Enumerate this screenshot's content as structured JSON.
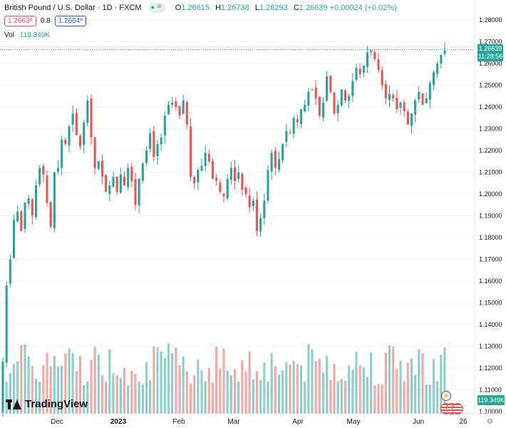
{
  "header": {
    "symbol": "British Pound / U.S. Dollar · 1D · FXCM",
    "o_label": "O",
    "o_value": "1.26615",
    "h_label": "H",
    "h_value": "1.26738",
    "l_label": "L",
    "l_value": "1.26293",
    "c_label": "C",
    "c_value": "1.26639",
    "change": "+0.00024 (+0.02%)"
  },
  "quote": {
    "sell": "1.2663⁸",
    "spread": "0.8",
    "buy": "1.2664⁶"
  },
  "volume": {
    "label": "Vol",
    "value": "119.349K",
    "tag": "119.349K"
  },
  "price_tag": {
    "price": "1.26639",
    "countdown": "11:28:56"
  },
  "brand": {
    "name": "TradingView"
  },
  "icons": {
    "eye": "eye-icon",
    "bolt": "bolt-icon",
    "flag": "us-flag-icon",
    "settings": "gear-icon",
    "logo": "tradingview-logo"
  },
  "colors": {
    "up": "#26a69a",
    "down": "#ef5350",
    "vol_up": "#8ccfc6",
    "vol_down": "#f4a8a6",
    "last_line": "#26a69a"
  },
  "chart_data": {
    "type": "candlestick",
    "y_ticks": [
      "1.28000",
      "1.27000",
      "1.26000",
      "1.25000",
      "1.24000",
      "1.23000",
      "1.22000",
      "1.21000",
      "1.20000",
      "1.19000",
      "1.18000",
      "1.17000",
      "1.16000",
      "1.15000",
      "1.14000",
      "1.13000",
      "1.12000",
      "1.11000",
      "1.10000"
    ],
    "ylim": [
      1.1,
      1.28
    ],
    "x_ticks": [
      "Dec",
      "2023",
      "Feb",
      "Mar",
      "Apr",
      "May",
      "Jun",
      "26"
    ],
    "last_price": 1.26639,
    "closes": [
      1.123,
      1.158,
      1.17,
      1.188,
      1.192,
      1.183,
      1.196,
      1.198,
      1.19,
      1.204,
      1.212,
      1.209,
      1.196,
      1.185,
      1.21,
      1.212,
      1.225,
      1.223,
      1.231,
      1.237,
      1.227,
      1.222,
      1.233,
      1.243,
      1.226,
      1.212,
      1.215,
      1.208,
      1.201,
      1.204,
      1.208,
      1.201,
      1.209,
      1.204,
      1.212,
      1.206,
      1.195,
      1.207,
      1.214,
      1.22,
      1.228,
      1.217,
      1.223,
      1.226,
      1.236,
      1.241,
      1.242,
      1.24,
      1.236,
      1.243,
      1.232,
      1.208,
      1.205,
      1.211,
      1.213,
      1.219,
      1.215,
      1.207,
      1.206,
      1.201,
      1.199,
      1.207,
      1.212,
      1.206,
      1.21,
      1.202,
      1.2,
      1.194,
      1.197,
      1.183,
      1.189,
      1.197,
      1.211,
      1.219,
      1.212,
      1.216,
      1.223,
      1.229,
      1.228,
      1.235,
      1.233,
      1.239,
      1.241,
      1.247,
      1.248,
      1.244,
      1.236,
      1.242,
      1.254,
      1.247,
      1.237,
      1.241,
      1.248,
      1.243,
      1.245,
      1.252,
      1.258,
      1.255,
      1.259,
      1.265,
      1.266,
      1.262,
      1.257,
      1.25,
      1.244,
      1.246,
      1.244,
      1.239,
      1.242,
      1.238,
      1.232,
      1.237,
      1.243,
      1.247,
      1.241,
      1.244,
      1.251,
      1.256,
      1.26,
      1.264,
      1.266
    ]
  }
}
